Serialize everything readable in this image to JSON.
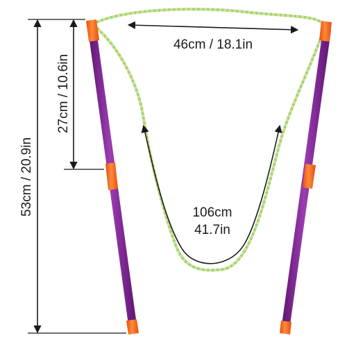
{
  "dimensions": {
    "width_label": "46cm / 18.1in",
    "rope_length_line1": "106cm",
    "rope_length_line2": "41.7in",
    "half_height_label": "27cm / 10.6in",
    "full_height_label": "53cm / 20.9in"
  },
  "colors": {
    "pole": "#7b1f8f",
    "pole_highlight": "#a95bbd",
    "cap": "#ff6a1a",
    "rope_a": "#d9e07a",
    "rope_b": "#8fd49a",
    "dimension_line": "#1a1a1a"
  }
}
